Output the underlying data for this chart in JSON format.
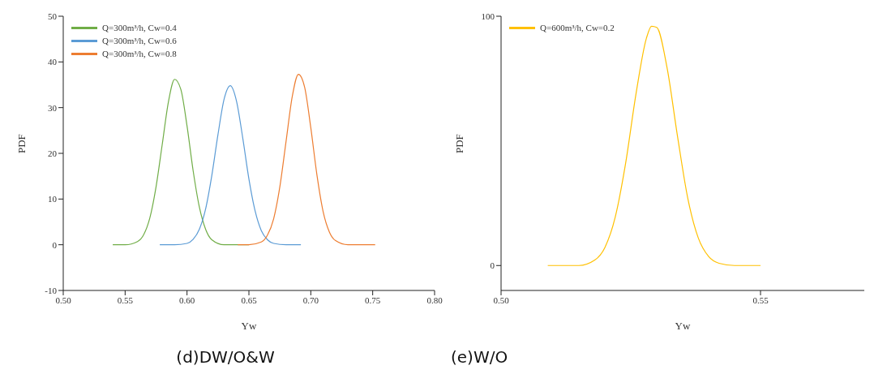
{
  "chart_data": [
    {
      "type": "line",
      "xlabel": "Yw",
      "ylabel": "PDF",
      "annotations": [
        "(d)DW/O&W"
      ],
      "legend": "top left",
      "grid": false,
      "marker": "none",
      "line_style": "solid",
      "xlim": [
        0.5,
        0.8
      ],
      "xticks": [
        {
          "value": 0.5,
          "label": "0.50"
        },
        {
          "value": 0.55,
          "label": "0.55"
        },
        {
          "value": 0.6,
          "label": "0.60"
        },
        {
          "value": 0.65,
          "label": "0.65"
        },
        {
          "value": 0.7,
          "label": "0.70"
        },
        {
          "value": 0.75,
          "label": "0.75"
        },
        {
          "value": 0.8,
          "label": "0.80"
        }
      ],
      "ylim": [
        -10,
        50
      ],
      "yticks": [
        -10,
        0,
        10,
        20,
        30,
        40,
        50
      ],
      "series": [
        {
          "name": "Q=300m³/h, Cw=0.4",
          "color": "#70ad47",
          "x": [
            0.54,
            0.55,
            0.56,
            0.565,
            0.57,
            0.575,
            0.58,
            0.585,
            0.59,
            0.595,
            0.6,
            0.605,
            0.61,
            0.615,
            0.62,
            0.63,
            0.65
          ],
          "values": [
            0,
            0,
            0.7,
            2.2,
            5.9,
            12.7,
            22,
            31.3,
            36.2,
            34,
            26,
            16.1,
            8.2,
            3.4,
            1.1,
            0,
            0
          ]
        },
        {
          "name": "Q=300m³/h, Cw=0.6",
          "color": "#5b9bd5",
          "x": [
            0.578,
            0.59,
            0.6,
            0.605,
            0.61,
            0.615,
            0.62,
            0.625,
            0.63,
            0.635,
            0.64,
            0.645,
            0.65,
            0.655,
            0.66,
            0.665,
            0.67,
            0.68,
            0.692
          ],
          "values": [
            0,
            0,
            0.3,
            1.2,
            3.4,
            7.8,
            15.1,
            24.1,
            31.9,
            34.8,
            31.4,
            23.4,
            14.4,
            7.4,
            3.1,
            1.1,
            0.3,
            0,
            0
          ]
        },
        {
          "name": "Q=300m³/h, Cw=0.8",
          "color": "#ed7d31",
          "x": [
            0.641,
            0.65,
            0.66,
            0.665,
            0.67,
            0.675,
            0.68,
            0.685,
            0.69,
            0.695,
            0.7,
            0.705,
            0.71,
            0.715,
            0.72,
            0.73,
            0.752
          ],
          "values": [
            0,
            0,
            0.6,
            2.1,
            5.7,
            12.7,
            22.6,
            32.4,
            37.3,
            34.5,
            25.6,
            15.2,
            7.2,
            2.8,
            0.9,
            0,
            0
          ]
        }
      ]
    },
    {
      "type": "line",
      "xlabel": "Yw",
      "ylabel": "PDF",
      "annotations": [
        "(e)W/O"
      ],
      "legend": "top left",
      "grid": false,
      "marker": "none",
      "line_style": "solid",
      "xlim": [
        0.5,
        0.57
      ],
      "xticks": [
        {
          "value": 0.5,
          "label": "0.50"
        },
        {
          "value": 0.55,
          "label": "0.55"
        }
      ],
      "ylim": [
        -10,
        100
      ],
      "yticks": [
        0,
        100
      ],
      "series": [
        {
          "name": "Q=600m³/h, Cw=0.2",
          "color": "#ffc000",
          "x": [
            0.509,
            0.515,
            0.518,
            0.52,
            0.522,
            0.524,
            0.526,
            0.528,
            0.529,
            0.53,
            0.532,
            0.534,
            0.536,
            0.538,
            0.54,
            0.542,
            0.545,
            0.55
          ],
          "values": [
            0,
            0,
            2.1,
            7.2,
            19.4,
            41,
            68.8,
            91.1,
            96,
            95.5,
            79.2,
            51.9,
            26.8,
            11.1,
            3.6,
            0.9,
            0,
            0
          ]
        }
      ]
    }
  ]
}
